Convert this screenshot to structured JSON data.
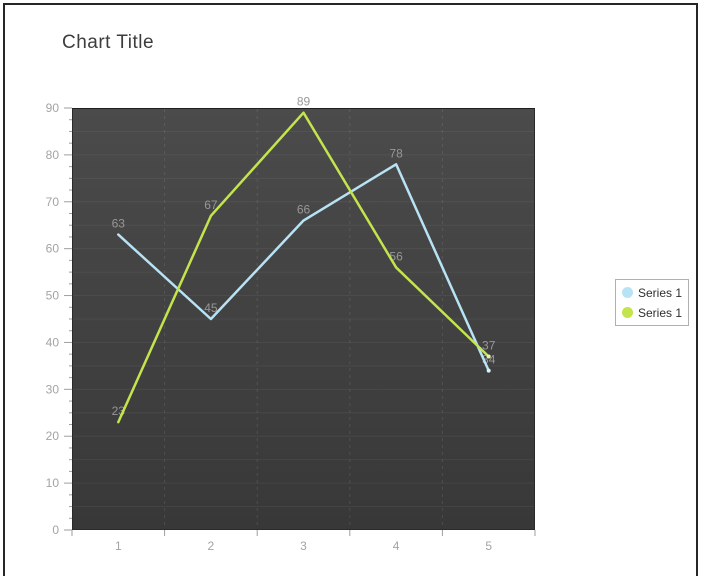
{
  "window": {
    "background": "#ffffff",
    "frame_border_color": "#262626"
  },
  "chart_data": {
    "type": "line",
    "title": "Chart Title",
    "categories": [
      "1",
      "2",
      "3",
      "4",
      "5"
    ],
    "series": [
      {
        "name": "Series 1",
        "color": "#b7e3f4",
        "marker_color": "#d9f1fb",
        "values": [
          63,
          45,
          66,
          78,
          34
        ]
      },
      {
        "name": "Series 1",
        "color": "#c3e44d",
        "marker_color": "#e4f4a6",
        "values": [
          23,
          67,
          89,
          56,
          37
        ]
      }
    ],
    "xlabel": "",
    "ylabel": "",
    "ylim": [
      0,
      90
    ],
    "y_ticks": [
      "0",
      "10",
      "20",
      "30",
      "40",
      "50",
      "60",
      "70",
      "80",
      "90"
    ],
    "y_major_step": 10,
    "y_minor_step": 2.5,
    "grid_step": 5,
    "grid": true,
    "legend_position": "right",
    "plot_bg_top": "#4b4b4b",
    "plot_bg_bottom": "#383838",
    "h_grid_color": "rgba(255,255,255,0.055)",
    "v_grid_color": "rgba(255,255,255,0.10)",
    "tick_color": "#9e9e9e",
    "axis_text_color": "#a3a3a3",
    "data_label_color": "#979797"
  }
}
